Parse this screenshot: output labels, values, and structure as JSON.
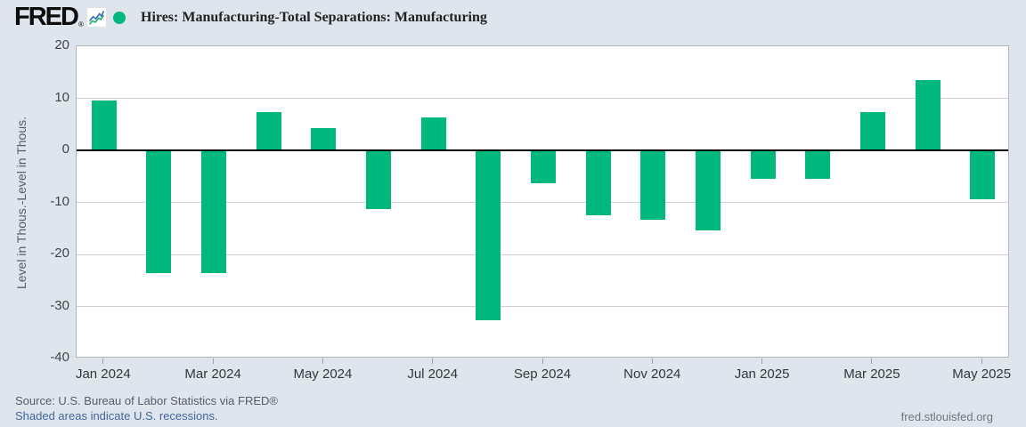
{
  "header": {
    "logo_text": "FRED",
    "logo_reg": "®",
    "legend_label": "Hires: Manufacturing-Total Separations: Manufacturing"
  },
  "chart_data": {
    "type": "bar",
    "title": "Hires: Manufacturing-Total Separations: Manufacturing",
    "ylabel": "Level in Thous.-Level in Thous.",
    "ylim": [
      -40,
      20
    ],
    "yticks": [
      20,
      10,
      0,
      -10,
      -20,
      -30,
      -40
    ],
    "grid": true,
    "legend_position": "top-left",
    "bar_color": "#00b77d",
    "categories": [
      "Jan 2024",
      "Feb 2024",
      "Mar 2024",
      "Apr 2024",
      "May 2024",
      "Jun 2024",
      "Jul 2024",
      "Aug 2024",
      "Sep 2024",
      "Oct 2024",
      "Nov 2024",
      "Dec 2024",
      "Jan 2025",
      "Feb 2025",
      "Mar 2025",
      "Apr 2025",
      "May 2025"
    ],
    "values": [
      9.6,
      -23.6,
      -23.6,
      7.4,
      4.3,
      -11.3,
      6.4,
      -32.7,
      -6.4,
      -12.4,
      -13.4,
      -15.3,
      -5.5,
      -5.5,
      7.4,
      13.5,
      -9.4
    ],
    "x_tick_every": 2
  },
  "footer": {
    "source": "Source: U.S. Bureau of Labor Statistics via FRED®",
    "recession_note": "Shaded areas indicate U.S. recessions.",
    "site": "fred.stlouisfed.org"
  },
  "colors": {
    "background": "#dfe5ed",
    "plot_background": "#ffffff",
    "bar": "#00b77d",
    "zero_line": "#000000",
    "gridline": "#cfcfcf",
    "link": "#44669a",
    "logo_icon_blue": "#2f6eb6",
    "logo_icon_green": "#21ab75"
  }
}
